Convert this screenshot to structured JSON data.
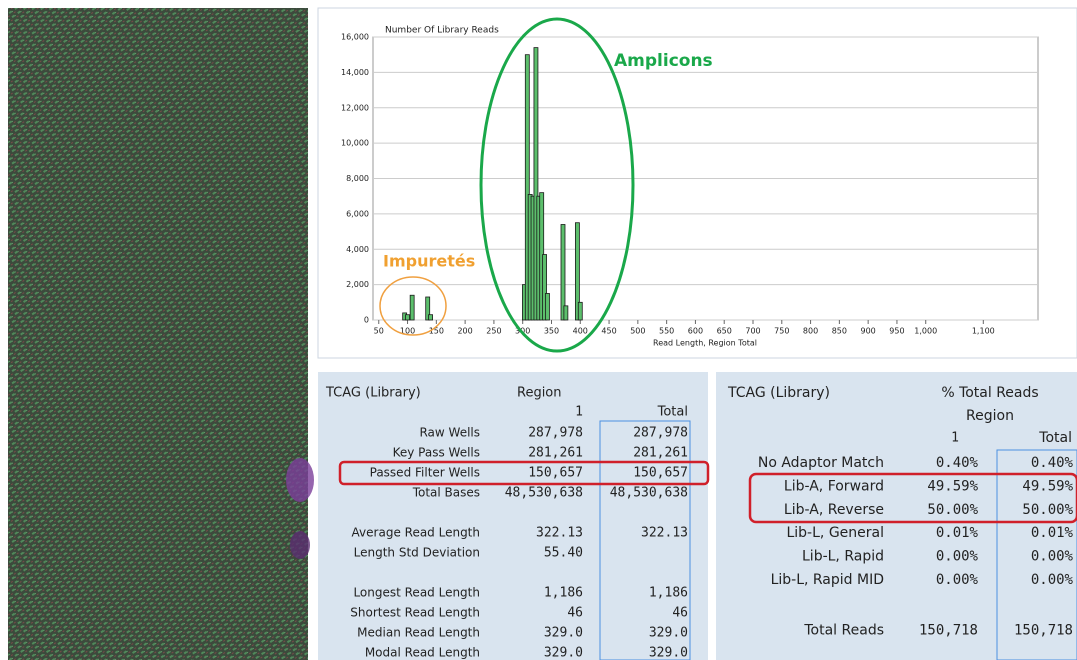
{
  "chart_data": {
    "type": "bar",
    "y_label": "Number Of Library Reads",
    "x_label": "Read Length, Region Total",
    "annotations": [
      "Amplicons",
      "Impuretés"
    ],
    "x": [
      95,
      100,
      108,
      135,
      140,
      303,
      308,
      313,
      318,
      323,
      328,
      333,
      338,
      343,
      370,
      375,
      395,
      400
    ],
    "values": [
      400,
      300,
      1400,
      1300,
      300,
      2000,
      15000,
      7100,
      7000,
      15400,
      7000,
      7200,
      3700,
      1500,
      5400,
      800,
      5500,
      1000
    ],
    "color": "#5cbf6c",
    "xlim": [
      40,
      1195
    ],
    "ylim": [
      0,
      16000
    ],
    "xticks": [
      50,
      100,
      150,
      200,
      250,
      300,
      350,
      400,
      450,
      500,
      550,
      600,
      650,
      700,
      750,
      800,
      850,
      900,
      950,
      {
        "value": 1000,
        "label": "1,000"
      },
      {
        "value": 1100,
        "label": "1,100"
      }
    ],
    "yticks": [
      0,
      {
        "value": 2000,
        "label": "2,000"
      },
      {
        "value": 4000,
        "label": "4,000"
      },
      {
        "value": 6000,
        "label": "6,000"
      },
      {
        "value": 8000,
        "label": "8,000"
      },
      {
        "value": 10000,
        "label": "10,000"
      },
      {
        "value": 12000,
        "label": "12,000"
      },
      {
        "value": 14000,
        "label": "14,000"
      },
      {
        "value": 16000,
        "label": "16,000"
      }
    ],
    "grid": true
  },
  "table_left": {
    "header": [
      "TCAG (Library)",
      "Region",
      "1",
      "Total"
    ],
    "groups": [
      [
        [
          "Raw Wells",
          "287,978",
          "287,978"
        ],
        [
          "Key Pass Wells",
          "281,261",
          "281,261"
        ],
        [
          "Passed Filter Wells",
          "150,657",
          "150,657"
        ],
        [
          "Total Bases",
          "48,530,638",
          "48,530,638"
        ]
      ],
      [
        [
          "Average Read Length",
          "322.13",
          "322.13"
        ],
        [
          "Length Std Deviation",
          "55.40",
          null
        ]
      ],
      [
        [
          "Longest Read Length",
          "1,186",
          "1,186"
        ],
        [
          "Shortest Read Length",
          "46",
          "46"
        ],
        [
          "Median Read Length",
          "329.0",
          "329.0"
        ],
        [
          "Modal Read Length",
          "329.0",
          "329.0"
        ]
      ]
    ]
  },
  "table_right": {
    "header": [
      "TCAG (Library)",
      "% Total Reads",
      "Region",
      "1",
      "Total"
    ],
    "groups": [
      [
        [
          "No Adaptor Match",
          "0.40%",
          "0.40%"
        ],
        [
          "Lib-A, Forward",
          "49.59%",
          "49.59%"
        ],
        [
          "Lib-A, Reverse",
          "50.00%",
          "50.00%"
        ],
        [
          "Lib-L, General",
          "0.01%",
          "0.01%"
        ],
        [
          "Lib-L, Rapid",
          "0.00%",
          "0.00%"
        ],
        [
          "Lib-L, Rapid MID",
          "0.00%",
          "0.00%"
        ]
      ],
      [
        [
          "Total Reads",
          "150,718",
          "150,718"
        ]
      ]
    ]
  }
}
